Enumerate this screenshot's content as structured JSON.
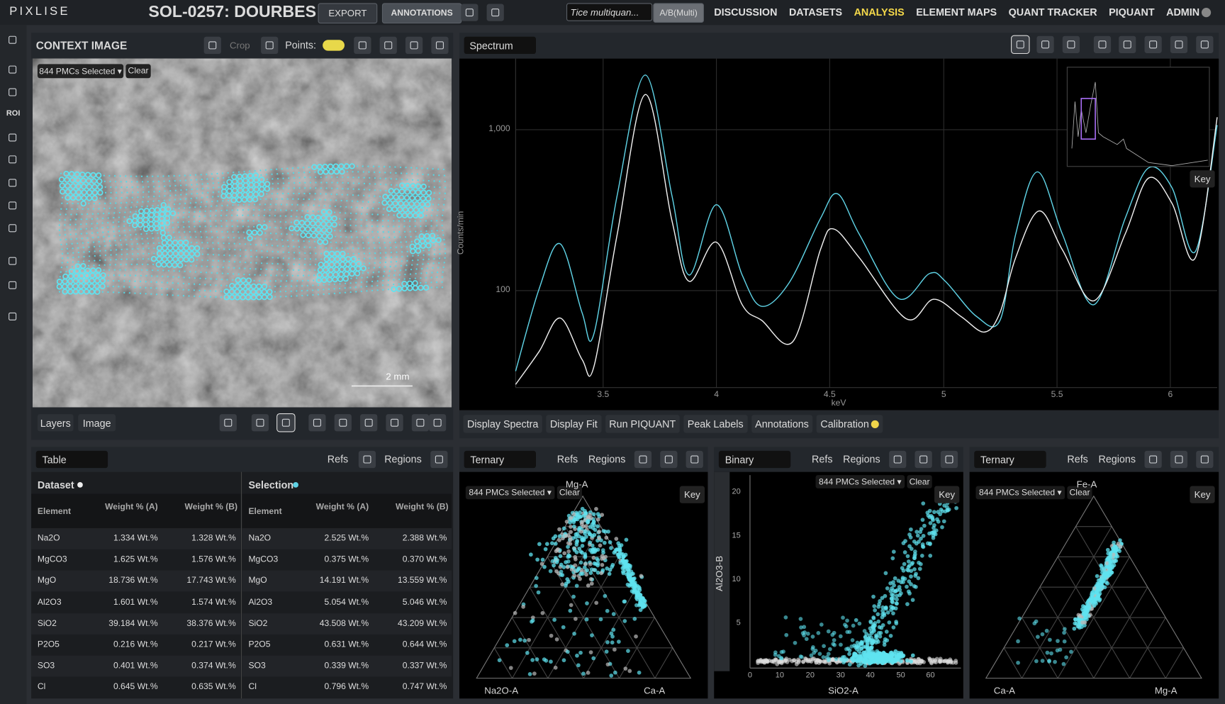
{
  "header": {
    "logo": "PIXLISE",
    "title": "SOL-0257: DOURBES",
    "export": "EXPORT",
    "annotations": "ANNOTATIONS",
    "quant": "Tice multiquan...",
    "ab": "A/B(Multi)",
    "nav": [
      "DISCUSSION",
      "DATASETS",
      "ANALYSIS",
      "ELEMENT MAPS",
      "QUANT TRACKER",
      "PIQUANT",
      "ADMIN"
    ],
    "active_nav": 2
  },
  "sidebar": {
    "roi": "ROI"
  },
  "context_image": {
    "title": "CONTEXT IMAGE",
    "crop": "Crop",
    "points": "Points:",
    "selection": "844 PMCs Selected ▾",
    "clear": "Clear",
    "scale": "2 mm",
    "tabs": [
      "Layers",
      "Image"
    ]
  },
  "spectrum": {
    "mode": "Spectrum",
    "y_axis": "Counts/min",
    "x_axis": "keV",
    "y_ticks": [
      "1,000",
      "100"
    ],
    "x_ticks": [
      "3.5",
      "4",
      "4.5",
      "5",
      "5.5",
      "6"
    ],
    "key": "Key",
    "buttons": [
      "Display Spectra",
      "Display Fit",
      "Run PIQUANT",
      "Peak Labels",
      "Annotations",
      "Calibration"
    ]
  },
  "table": {
    "mode": "Table",
    "refs": "Refs",
    "regions": "Regions",
    "groups": [
      {
        "name": "Dataset",
        "columns": [
          "Element",
          "Weight % (A)",
          "Weight % (B)"
        ],
        "rows": [
          [
            "Na2O",
            "1.334 Wt.%",
            "1.328 Wt.%"
          ],
          [
            "MgCO3",
            "1.625 Wt.%",
            "1.576 Wt.%"
          ],
          [
            "MgO",
            "18.736 Wt.%",
            "17.743 Wt.%"
          ],
          [
            "Al2O3",
            "1.601 Wt.%",
            "1.574 Wt.%"
          ],
          [
            "SiO2",
            "39.184 Wt.%",
            "38.376 Wt.%"
          ],
          [
            "P2O5",
            "0.216 Wt.%",
            "0.217 Wt.%"
          ],
          [
            "SO3",
            "0.401 Wt.%",
            "0.374 Wt.%"
          ],
          [
            "Cl",
            "0.645 Wt.%",
            "0.635 Wt.%"
          ]
        ]
      },
      {
        "name": "Selection",
        "columns": [
          "Element",
          "Weight % (A)",
          "Weight % (B)"
        ],
        "rows": [
          [
            "Na2O",
            "2.525 Wt.%",
            "2.388 Wt.%"
          ],
          [
            "MgCO3",
            "0.375 Wt.%",
            "0.370 Wt.%"
          ],
          [
            "MgO",
            "14.191 Wt.%",
            "13.559 Wt.%"
          ],
          [
            "Al2O3",
            "5.054 Wt.%",
            "5.046 Wt.%"
          ],
          [
            "SiO2",
            "43.508 Wt.%",
            "43.209 Wt.%"
          ],
          [
            "P2O5",
            "0.631 Wt.%",
            "0.644 Wt.%"
          ],
          [
            "SO3",
            "0.339 Wt.%",
            "0.337 Wt.%"
          ],
          [
            "Cl",
            "0.796 Wt.%",
            "0.747 Wt.%"
          ]
        ]
      }
    ]
  },
  "plots": [
    {
      "mode": "Ternary",
      "refs": "Refs",
      "regions": "Regions",
      "selection": "844 PMCs Selected ▾",
      "clear": "Clear",
      "key": "Key",
      "labels": [
        "Mg-A",
        "Na2O-A",
        "Ca-A"
      ]
    },
    {
      "mode": "Binary",
      "refs": "Refs",
      "regions": "Regions",
      "selection": "844 PMCs Selected ▾",
      "clear": "Clear",
      "key": "Key",
      "y_axis": "Al2O3-B",
      "x_axis": "SiO2-A",
      "y_ticks": [
        "20",
        "15",
        "10",
        "5"
      ],
      "x_ticks": [
        "0",
        "10",
        "20",
        "30",
        "40",
        "50",
        "60"
      ]
    },
    {
      "mode": "Ternary",
      "refs": "Refs",
      "regions": "Regions",
      "selection": "844 PMCs Selected ▾",
      "clear": "Clear",
      "key": "Key",
      "labels": [
        "Fe-A",
        "Ca-A",
        "Mg-A"
      ]
    }
  ]
}
